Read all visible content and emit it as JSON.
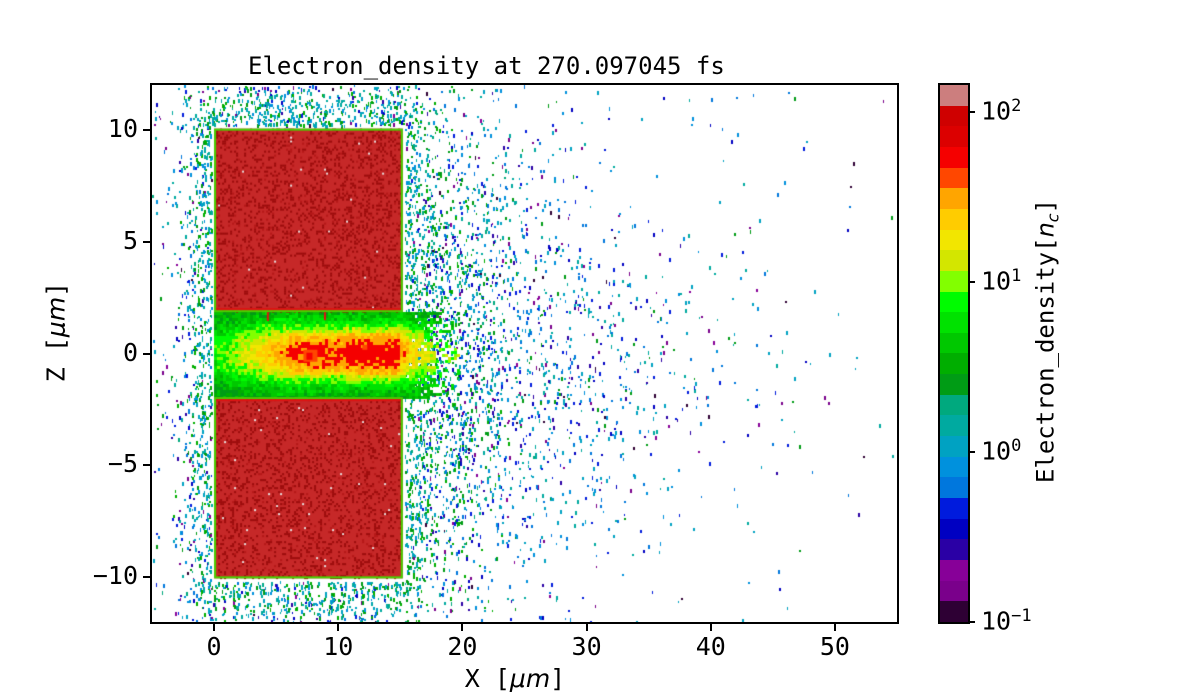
{
  "figure": {
    "background": "#ffffff"
  },
  "title": {
    "text": "Electron_density at 270.097045 fs"
  },
  "axes": {
    "xlim": [
      -5,
      55
    ],
    "zlim": [
      -12,
      12
    ],
    "x_ticks": [
      {
        "label": "0",
        "value": 0
      },
      {
        "label": "10",
        "value": 10
      },
      {
        "label": "20",
        "value": 20
      },
      {
        "label": "30",
        "value": 30
      },
      {
        "label": "40",
        "value": 40
      },
      {
        "label": "50",
        "value": 50
      }
    ],
    "z_ticks": [
      {
        "label": "10",
        "value": 10
      },
      {
        "label": "5",
        "value": 5
      },
      {
        "label": "0",
        "value": 0
      },
      {
        "label": "−5",
        "value": -5
      },
      {
        "label": "−10",
        "value": -10
      }
    ],
    "x_label": {
      "pre": "X [",
      "var": "μm",
      "post": "]"
    },
    "z_label": {
      "pre": "Z [",
      "var": "μm",
      "post": "]"
    }
  },
  "colorbar": {
    "scale": "log",
    "vmin": 0.1,
    "vmax": 144,
    "ticks": [
      {
        "base": "10",
        "exp": "2",
        "value": 100
      },
      {
        "base": "10",
        "exp": "1",
        "value": 10
      },
      {
        "base": "10",
        "exp": "0",
        "value": 1
      },
      {
        "base": "10",
        "exp": "−1",
        "value": 0.1
      }
    ],
    "label": {
      "pre": "Electron_density[",
      "var": "n",
      "sub": "c",
      "post": "]"
    },
    "band_colors_bottom_to_top": [
      "#2e0034",
      "#7a008b",
      "#870098",
      "#2a00a5",
      "#0000c2",
      "#001bdd",
      "#0077dd",
      "#0091dd",
      "#00a2c2",
      "#00aaa0",
      "#00a97e",
      "#009c15",
      "#00ae00",
      "#00c800",
      "#00e200",
      "#00fc00",
      "#82ff00",
      "#d3e600",
      "#f2e600",
      "#ffcc00",
      "#ffa500",
      "#ff4700",
      "#f50000",
      "#dc0000",
      "#cf0000",
      "#cc7e7e"
    ]
  },
  "colors": {
    "background": "#ffffff",
    "frame": "#000000",
    "text": "#000000",
    "block_fill": "#c62828",
    "block_speckle_dark": "#9c0c0c",
    "block_speckle_mid": "#b51818",
    "block_speckle_light": "#e6dcdc",
    "block_edge": "#44d400",
    "block_channel_edge_line": "#dd1414",
    "hotspot_red": "#f50000",
    "hotspot_orange": "#ff4700",
    "speckle_near": [
      [
        "#00aaa0",
        0.28
      ],
      [
        "#00a2c2",
        0.52
      ],
      [
        "#00ae00",
        0.72
      ],
      [
        "#009c15",
        0.88
      ],
      [
        "#0091dd",
        1.0
      ]
    ],
    "speckle_green": [
      [
        "#00ae00",
        0.4
      ],
      [
        "#009c15",
        0.7
      ],
      [
        "#00a97e",
        1.0
      ]
    ],
    "speckle_far": [
      [
        "#00a2c2",
        0.16
      ],
      [
        "#00aaa0",
        0.3
      ],
      [
        "#0077dd",
        0.46
      ],
      [
        "#0091dd",
        0.58
      ],
      [
        "#001bdd",
        0.7
      ],
      [
        "#0000c2",
        0.78
      ],
      [
        "#009c15",
        0.84
      ],
      [
        "#2a00a5",
        0.9
      ],
      [
        "#7a008b",
        0.95
      ],
      [
        "#870098",
        0.98
      ],
      [
        "#2e0034",
        1.0
      ]
    ],
    "channel_ramp": [
      "#009c15",
      "#00ae00",
      "#00c800",
      "#00e200",
      "#00fc00",
      "#82ff00",
      "#d3e600",
      "#f2e600",
      "#ffcc00",
      "#ffa500",
      "#ff4700",
      "#f50000"
    ]
  },
  "chart_data": {
    "type": "heatmap",
    "title": "Electron_density at 270.097045 fs",
    "time_fs": 270.097045,
    "xlabel": "X [μm]",
    "ylabel": "Z [μm]",
    "colorbar_label": "Electron_density[n_c]",
    "xlim": [
      -5,
      55
    ],
    "ylim": [
      -12,
      12
    ],
    "color_scale": "log",
    "clim": [
      0.1,
      144
    ],
    "colormap": "nipy_spectral, discrete bands",
    "x_tick_values": [
      0,
      10,
      20,
      30,
      40,
      50
    ],
    "y_tick_values": [
      10,
      5,
      0,
      -5,
      -10
    ],
    "colorbar_tick_values": [
      100,
      10,
      1,
      0.1
    ],
    "grid": false,
    "features": {
      "target_blocks": [
        {
          "x_um": [
            0,
            15.2
          ],
          "z_um": [
            1.85,
            10.05
          ],
          "density_nc": ">=100 (solid red, dark-red speckle)"
        },
        {
          "x_um": [
            0,
            15.2
          ],
          "z_um": [
            -10.05,
            -1.95
          ],
          "density_nc": ">=100 (solid red, dark-red speckle)"
        }
      ],
      "channel": {
        "x_um": [
          0,
          15.2
        ],
        "z_um": [
          -1.95,
          1.85
        ],
        "description": "plasma channel between blocks; green ~3-8 n_c at edges, yellow 20-40 n_c core, orange ~60 n_c for x=6-15",
        "hotspot": {
          "x_um": 7.6,
          "z_um": -0.1,
          "density_nc": "~90 (red spot)"
        },
        "hotspot2": {
          "x_um": 12.1,
          "z_um": 0.3,
          "density_nc": "~60 (orange spot)"
        }
      },
      "plume": {
        "x_um": [
          15.2,
          40
        ],
        "z_um": [
          -11,
          11
        ],
        "description": "electron plume exiting channel: solid green to x~19, teal/blue speckle 0.3-3 n_c narrowing and thinning toward x~35"
      },
      "background_speckle": {
        "density_nc": "0.1-2",
        "description": "scattered blue/teal/purple dots over whole domain; dense halo within ~3 um of block edges; sparse strays to x=55"
      }
    }
  }
}
